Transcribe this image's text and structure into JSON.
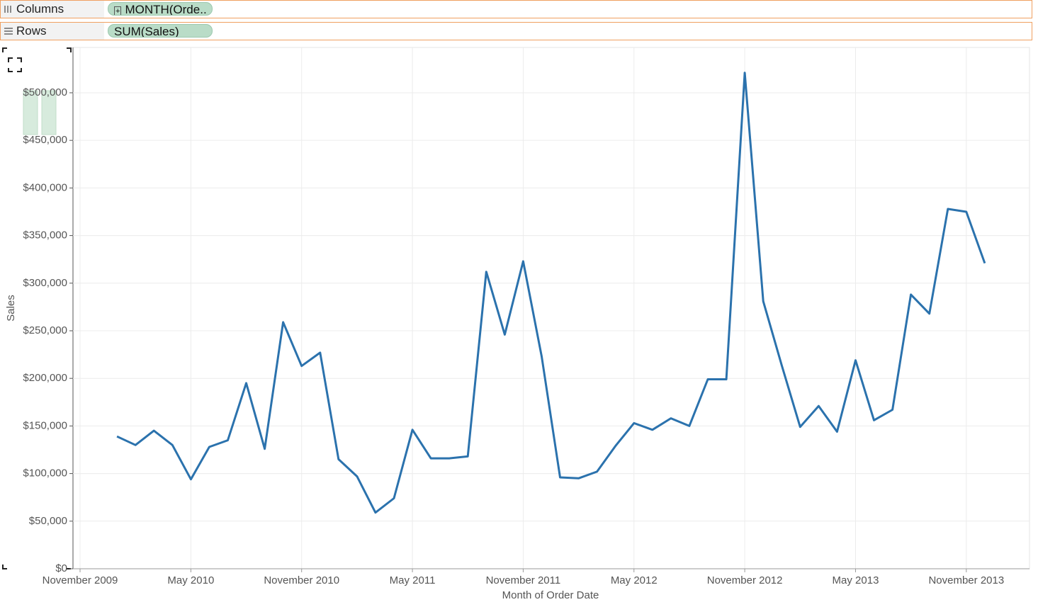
{
  "shelves": {
    "columns": {
      "label": "Columns",
      "pill": "MONTH(Orde.."
    },
    "rows": {
      "label": "Rows",
      "pill": "SUM(Sales)"
    }
  },
  "chart_data": {
    "type": "line",
    "x_label": "Month of Order Date",
    "y_label": "Sales",
    "color": "#2b72ad",
    "grid": true,
    "x": [
      "2010-01",
      "2010-02",
      "2010-03",
      "2010-04",
      "2010-05",
      "2010-06",
      "2010-07",
      "2010-08",
      "2010-09",
      "2010-10",
      "2010-11",
      "2010-12",
      "2011-01",
      "2011-02",
      "2011-03",
      "2011-04",
      "2011-05",
      "2011-06",
      "2011-07",
      "2011-08",
      "2011-09",
      "2011-10",
      "2011-11",
      "2011-12",
      "2012-01",
      "2012-02",
      "2012-03",
      "2012-04",
      "2012-05",
      "2012-06",
      "2012-07",
      "2012-08",
      "2012-09",
      "2012-10",
      "2012-11",
      "2012-12",
      "2013-01",
      "2013-02",
      "2013-03",
      "2013-04",
      "2013-05",
      "2013-06",
      "2013-07",
      "2013-08",
      "2013-09",
      "2013-10",
      "2013-11",
      "2013-12"
    ],
    "values": [
      139000,
      130000,
      145000,
      130000,
      94000,
      128000,
      135000,
      195000,
      126000,
      259000,
      213000,
      227000,
      115000,
      97000,
      59000,
      74000,
      146000,
      116000,
      116000,
      118000,
      312000,
      246000,
      323000,
      223000,
      96000,
      95000,
      102000,
      129000,
      153000,
      146000,
      158000,
      150000,
      199000,
      199000,
      521000,
      281000,
      214000,
      149000,
      171000,
      144000,
      219000,
      156000,
      167000,
      288000,
      268000,
      378000,
      375000,
      321000
    ],
    "xlim": [
      "2009-11",
      "2014-02"
    ],
    "xticks": [
      {
        "value": "2009-11",
        "label": "November 2009"
      },
      {
        "value": "2010-05",
        "label": "May 2010"
      },
      {
        "value": "2010-11",
        "label": "November 2010"
      },
      {
        "value": "2011-05",
        "label": "May 2011"
      },
      {
        "value": "2011-11",
        "label": "November 2011"
      },
      {
        "value": "2012-05",
        "label": "May 2012"
      },
      {
        "value": "2012-11",
        "label": "November 2012"
      },
      {
        "value": "2013-05",
        "label": "May 2013"
      },
      {
        "value": "2013-11",
        "label": "November 2013"
      }
    ],
    "ylim": [
      0,
      547600
    ],
    "yticks": [
      {
        "value": 0,
        "label": "$0"
      },
      {
        "value": 50000,
        "label": "$50,000"
      },
      {
        "value": 100000,
        "label": "$100,000"
      },
      {
        "value": 150000,
        "label": "$150,000"
      },
      {
        "value": 200000,
        "label": "$200,000"
      },
      {
        "value": 250000,
        "label": "$250,000"
      },
      {
        "value": 300000,
        "label": "$300,000"
      },
      {
        "value": 350000,
        "label": "$350,000"
      },
      {
        "value": 400000,
        "label": "$400,000"
      },
      {
        "value": 450000,
        "label": "$450,000"
      },
      {
        "value": 500000,
        "label": "$500,000"
      }
    ]
  }
}
